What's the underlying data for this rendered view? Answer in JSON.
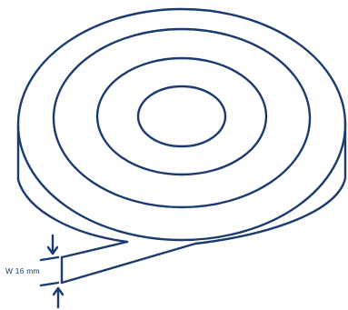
{
  "figure": {
    "line_color": "#1b3a6e",
    "background": "#ffffff",
    "subject": "roll-of-tape",
    "ring_count": 4
  },
  "dimension": {
    "label": "W 16 mm"
  }
}
